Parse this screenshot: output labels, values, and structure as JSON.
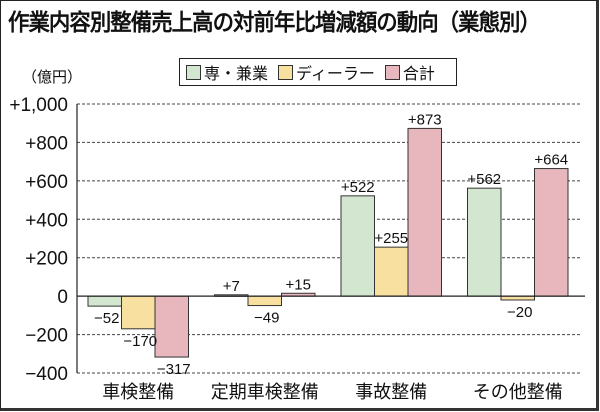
{
  "chart_data": {
    "type": "bar",
    "title": "作業内容別整備売上高の対前年比増減額の動向（業態別）",
    "unit_label": "（億円）",
    "xlabel": "",
    "ylabel": "億円",
    "ylim": [
      -400,
      1000
    ],
    "yticks": [
      1000,
      800,
      600,
      400,
      200,
      0,
      -200,
      -400
    ],
    "ytick_labels": [
      "+1,000",
      "+800",
      "+600",
      "+400",
      "+200",
      "0",
      "−200",
      "−400"
    ],
    "grid": true,
    "legend_position": "top-center",
    "categories": [
      "車検整備",
      "定期車検整備",
      "事故整備",
      "その他整備"
    ],
    "series": [
      {
        "name": "専・兼業",
        "color": "#d3e6d0",
        "values": [
          -52,
          7,
          522,
          562
        ],
        "labels": [
          "−52",
          "+7",
          "+522",
          "+562"
        ]
      },
      {
        "name": "ディーラー",
        "color": "#f7e0a0",
        "values": [
          -170,
          -49,
          255,
          -20
        ],
        "labels": [
          "−170",
          "−49",
          "+255",
          "−20"
        ]
      },
      {
        "name": "合計",
        "color": "#e8b7bd",
        "values": [
          -317,
          15,
          873,
          664
        ],
        "labels": [
          "−317",
          "+15",
          "+873",
          "+664"
        ]
      }
    ]
  }
}
